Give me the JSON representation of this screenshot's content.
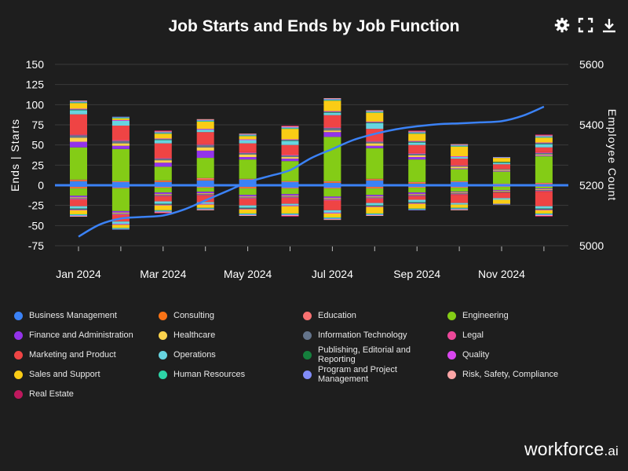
{
  "title": "Job Starts and Ends by Job Function",
  "toolbar": {
    "settings": "gear-icon",
    "fullscreen": "fullscreen-icon",
    "download": "download-icon"
  },
  "brand": {
    "main": "workforce",
    "suffix": ".ai"
  },
  "colors": {
    "background": "#1e1e1e",
    "zero_line": "#3b82f6",
    "employee_line": "#3b82f6",
    "grid": "#3a3a3a"
  },
  "chart_data": {
    "type": "bar",
    "stacked": true,
    "title": "Job Starts and Ends by Job Function",
    "ylabel": "Ends | Starts",
    "y2label": "Employee Count",
    "ylim": [
      -75,
      150
    ],
    "yticks": [
      -75,
      -50,
      -25,
      0,
      25,
      50,
      75,
      100,
      125,
      150
    ],
    "y2lim": [
      5000,
      5600
    ],
    "y2ticks": [
      5000,
      5200,
      5400,
      5600
    ],
    "categories": [
      "Jan 2024",
      "Feb 2024",
      "Mar 2024",
      "Apr 2024",
      "May 2024",
      "Jun 2024",
      "Jul 2024",
      "Aug 2024",
      "Sep 2024",
      "Oct 2024",
      "Nov 2024",
      "Dec 2024"
    ],
    "xtick_labels": [
      "Jan 2024",
      "",
      "Mar 2024",
      "",
      "May 2024",
      "",
      "Jul 2024",
      "",
      "Sep 2024",
      "",
      "Nov 2024",
      ""
    ],
    "series": [
      {
        "name": "Business Management",
        "color": "#3b82f6",
        "starts": [
          5,
          4,
          4,
          6,
          7,
          4,
          3,
          6,
          2,
          4,
          1,
          1
        ],
        "ends": [
          -2,
          -3,
          -2,
          -2,
          -2,
          -3,
          -3,
          -2,
          -2,
          -2,
          -1,
          -1
        ]
      },
      {
        "name": "Consulting",
        "color": "#f97316",
        "starts": [
          1,
          0,
          1,
          1,
          0,
          0,
          1,
          1,
          1,
          0,
          0,
          1
        ],
        "ends": [
          -1,
          0,
          0,
          0,
          -1,
          0,
          0,
          -1,
          0,
          0,
          0,
          0
        ]
      },
      {
        "name": "Education",
        "color": "#f87171",
        "starts": [
          1,
          1,
          1,
          2,
          1,
          1,
          1,
          1,
          1,
          1,
          1,
          1
        ],
        "ends": [
          -1,
          -1,
          -1,
          -1,
          -1,
          -1,
          -1,
          -1,
          -1,
          -1,
          -1,
          -1
        ]
      },
      {
        "name": "Engineering",
        "color": "#84cc16",
        "starts": [
          40,
          40,
          17,
          25,
          24,
          25,
          55,
          38,
          28,
          15,
          15,
          33
        ],
        "ends": [
          -9,
          -28,
          -6,
          -5,
          -8,
          -7,
          -10,
          -8,
          -6,
          -5,
          -4,
          -2
        ]
      },
      {
        "name": "Finance and Administration",
        "color": "#9333ea",
        "starts": [
          7,
          4,
          5,
          9,
          3,
          3,
          6,
          3,
          3,
          1,
          1,
          1
        ],
        "ends": [
          -2,
          -2,
          -2,
          -2,
          -2,
          -2,
          -2,
          -2,
          -2,
          -1,
          -1,
          -1
        ]
      },
      {
        "name": "Healthcare",
        "color": "#fcd34d",
        "starts": [
          5,
          3,
          3,
          4,
          3,
          2,
          2,
          3,
          2,
          2,
          1,
          1
        ],
        "ends": [
          -1,
          -1,
          -1,
          -1,
          -1,
          -1,
          -1,
          -1,
          -1,
          -1,
          -1,
          -1
        ]
      },
      {
        "name": "Information Technology",
        "color": "#64748b",
        "starts": [
          3,
          3,
          2,
          3,
          2,
          2,
          3,
          2,
          2,
          1,
          1,
          2
        ],
        "ends": [
          -1,
          -1,
          -1,
          -1,
          -1,
          -1,
          -1,
          -1,
          -1,
          -1,
          -1,
          -1
        ]
      },
      {
        "name": "Legal",
        "color": "#ec4899",
        "starts": [
          1,
          1,
          1,
          1,
          1,
          1,
          1,
          1,
          1,
          1,
          0,
          1
        ],
        "ends": [
          -1,
          -1,
          -1,
          -1,
          -1,
          -1,
          -1,
          -1,
          -1,
          -1,
          0,
          -1
        ]
      },
      {
        "name": "Marketing and Product",
        "color": "#ef4444",
        "starts": [
          25,
          18,
          18,
          15,
          11,
          12,
          15,
          15,
          10,
          8,
          6,
          6
        ],
        "ends": [
          -8,
          -8,
          -6,
          -8,
          -8,
          -7,
          -12,
          -5,
          -4,
          -10,
          -7,
          -18
        ]
      },
      {
        "name": "Operations",
        "color": "#67d4e0",
        "starts": [
          5,
          6,
          4,
          3,
          4,
          5,
          3,
          7,
          3,
          2,
          2,
          4
        ],
        "ends": [
          -3,
          -3,
          -3,
          -2,
          -3,
          -2,
          -3,
          -3,
          -3,
          -2,
          -2,
          -3
        ]
      },
      {
        "name": "Publishing, Editorial and Reporting",
        "color": "#15803d",
        "starts": [
          1,
          0,
          1,
          0,
          0,
          1,
          1,
          1,
          1,
          0,
          1,
          1
        ],
        "ends": [
          -1,
          0,
          -1,
          0,
          -1,
          0,
          0,
          -1,
          -1,
          0,
          0,
          -1
        ]
      },
      {
        "name": "Quality",
        "color": "#d946ef",
        "starts": [
          1,
          1,
          1,
          1,
          1,
          1,
          1,
          1,
          1,
          1,
          0,
          1
        ],
        "ends": [
          -1,
          -1,
          -1,
          -1,
          -1,
          -1,
          -1,
          -1,
          -1,
          0,
          0,
          -1
        ]
      },
      {
        "name": "Sales and Support",
        "color": "#facc15",
        "starts": [
          7,
          2,
          6,
          9,
          4,
          13,
          13,
          11,
          9,
          12,
          5,
          6
        ],
        "ends": [
          -5,
          -4,
          -6,
          -4,
          -5,
          -9,
          -5,
          -8,
          -6,
          -4,
          -5,
          -4
        ]
      },
      {
        "name": "Human Resources",
        "color": "#2dd4a7",
        "starts": [
          1,
          1,
          1,
          1,
          1,
          1,
          1,
          1,
          1,
          1,
          0,
          1
        ],
        "ends": [
          -1,
          -1,
          -1,
          -1,
          -1,
          -1,
          -1,
          -1,
          -1,
          -1,
          0,
          -1
        ]
      },
      {
        "name": "Program and Project Management",
        "color": "#818cf8",
        "starts": [
          1,
          1,
          1,
          1,
          1,
          1,
          1,
          1,
          1,
          1,
          1,
          1
        ],
        "ends": [
          -1,
          -1,
          -1,
          -1,
          -1,
          -1,
          -1,
          -1,
          -1,
          -1,
          -1,
          -1
        ]
      },
      {
        "name": "Risk, Safety, Compliance",
        "color": "#fca5a5",
        "starts": [
          1,
          0,
          1,
          1,
          1,
          1,
          1,
          1,
          1,
          1,
          0,
          1
        ],
        "ends": [
          -1,
          0,
          -1,
          -1,
          -1,
          -1,
          -1,
          -1,
          0,
          -1,
          0,
          -1
        ]
      },
      {
        "name": "Real Estate",
        "color": "#be185d",
        "starts": [
          0,
          0,
          1,
          0,
          0,
          1,
          0,
          0,
          1,
          0,
          0,
          1
        ],
        "ends": [
          0,
          0,
          -1,
          0,
          0,
          -1,
          0,
          0,
          0,
          0,
          0,
          -1
        ]
      }
    ],
    "employee_count": {
      "name": "Employee Count",
      "x": [
        0,
        0.5,
        1,
        1.5,
        2,
        2.5,
        3,
        3.5,
        4,
        4.5,
        5,
        5.5,
        6,
        6.5,
        7,
        7.5,
        8,
        8.5,
        9,
        9.5,
        10,
        10.5,
        11
      ],
      "values": [
        5030,
        5070,
        5090,
        5095,
        5100,
        5120,
        5150,
        5180,
        5210,
        5230,
        5250,
        5290,
        5320,
        5350,
        5370,
        5385,
        5395,
        5402,
        5405,
        5408,
        5412,
        5430,
        5460
      ]
    }
  }
}
